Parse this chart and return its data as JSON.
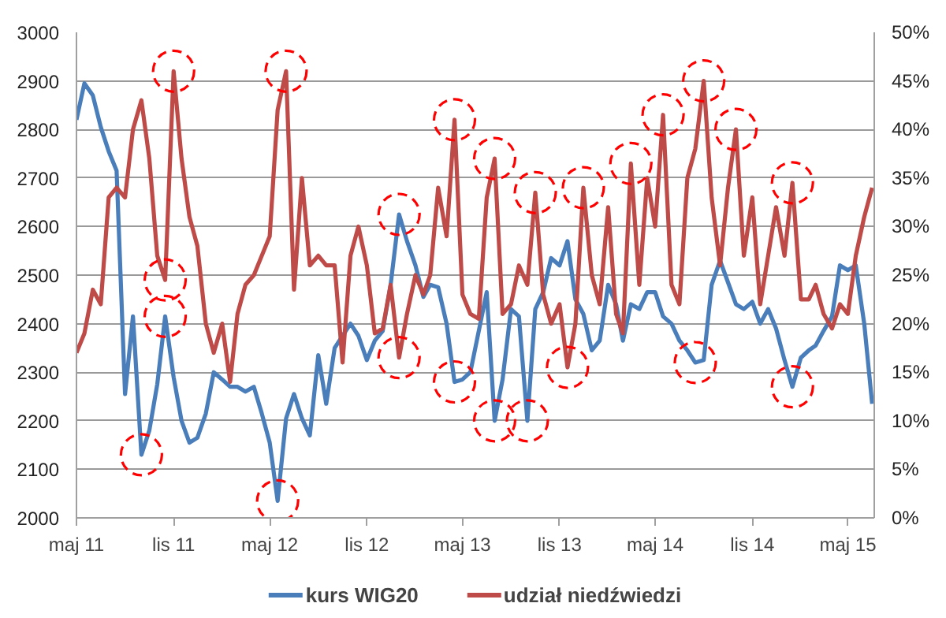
{
  "chart_data": {
    "type": "line",
    "x": [
      "2011-05-01",
      "2011-05-16",
      "2011-06-01",
      "2011-06-16",
      "2011-07-01",
      "2011-07-16",
      "2011-08-01",
      "2011-08-16",
      "2011-09-01",
      "2011-09-16",
      "2011-10-01",
      "2011-10-16",
      "2011-11-01",
      "2011-11-16",
      "2011-12-01",
      "2011-12-16",
      "2012-01-01",
      "2012-01-16",
      "2012-02-01",
      "2012-02-16",
      "2012-03-01",
      "2012-03-16",
      "2012-04-01",
      "2012-04-16",
      "2012-05-01",
      "2012-05-16",
      "2012-06-01",
      "2012-06-16",
      "2012-07-01",
      "2012-07-16",
      "2012-08-01",
      "2012-08-16",
      "2012-09-01",
      "2012-09-16",
      "2012-10-01",
      "2012-10-16",
      "2012-11-01",
      "2012-11-16",
      "2012-12-01",
      "2012-12-16",
      "2013-01-01",
      "2013-01-16",
      "2013-02-01",
      "2013-02-16",
      "2013-03-01",
      "2013-03-16",
      "2013-04-01",
      "2013-04-16",
      "2013-05-01",
      "2013-05-16",
      "2013-06-01",
      "2013-06-16",
      "2013-07-01",
      "2013-07-16",
      "2013-08-01",
      "2013-08-16",
      "2013-09-01",
      "2013-09-16",
      "2013-10-01",
      "2013-10-16",
      "2013-11-01",
      "2013-11-16",
      "2013-12-01",
      "2013-12-16",
      "2014-01-01",
      "2014-01-16",
      "2014-02-01",
      "2014-02-16",
      "2014-03-01",
      "2014-03-16",
      "2014-04-01",
      "2014-04-16",
      "2014-05-01",
      "2014-05-16",
      "2014-06-01",
      "2014-06-16",
      "2014-07-01",
      "2014-07-16",
      "2014-08-01",
      "2014-08-16",
      "2014-09-01",
      "2014-09-16",
      "2014-10-01",
      "2014-10-16",
      "2014-11-01",
      "2014-11-16",
      "2014-12-01",
      "2014-12-16",
      "2015-01-01",
      "2015-01-16",
      "2015-02-01",
      "2015-02-16",
      "2015-03-01",
      "2015-03-16",
      "2015-04-01",
      "2015-04-16",
      "2015-05-01",
      "2015-05-16",
      "2015-06-01",
      "2015-06-16"
    ],
    "series": [
      {
        "name": "kurs WIG20",
        "color": "#4a7ebb",
        "values": [
          2820,
          2895,
          2870,
          2805,
          2755,
          2715,
          2255,
          2415,
          2130,
          2180,
          2275,
          2415,
          2290,
          2200,
          2155,
          2165,
          2215,
          2300,
          2285,
          2270,
          2270,
          2260,
          2270,
          2215,
          2155,
          2035,
          2205,
          2255,
          2205,
          2170,
          2335,
          2235,
          2350,
          2375,
          2400,
          2375,
          2325,
          2365,
          2385,
          2480,
          2625,
          2570,
          2520,
          2455,
          2480,
          2475,
          2400,
          2280,
          2285,
          2300,
          2385,
          2465,
          2200,
          2285,
          2430,
          2415,
          2200,
          2430,
          2465,
          2535,
          2520,
          2570,
          2450,
          2420,
          2345,
          2365,
          2480,
          2440,
          2365,
          2440,
          2430,
          2465,
          2465,
          2415,
          2400,
          2365,
          2345,
          2320,
          2325,
          2480,
          2530,
          2485,
          2440,
          2430,
          2445,
          2400,
          2430,
          2390,
          2325,
          2270,
          2330,
          2345,
          2355,
          2385,
          2415,
          2520,
          2510,
          2520,
          2400,
          2235
        ]
      },
      {
        "name": "udział niedźwiedzi",
        "color": "#be4b48",
        "axis": "y2",
        "values": [
          17,
          19,
          23.5,
          22,
          33,
          34,
          33,
          40,
          43,
          37,
          27,
          24.5,
          46,
          37,
          31,
          28,
          20,
          17,
          20,
          14,
          21,
          24,
          25,
          27,
          29,
          42,
          46,
          23.5,
          35,
          26,
          27,
          26,
          26,
          16,
          27,
          30,
          26,
          19,
          19.5,
          24,
          16.5,
          21,
          25,
          23,
          25,
          34,
          29,
          41,
          23,
          21,
          20.5,
          33,
          37,
          21,
          22,
          26,
          24,
          33.5,
          23,
          20,
          22,
          15.5,
          20,
          34,
          25,
          22,
          32,
          21,
          19,
          36.5,
          24,
          35,
          30,
          41.5,
          24,
          22,
          35,
          38,
          45,
          33,
          26,
          34,
          40,
          27,
          33,
          22,
          27,
          32,
          27,
          34.5,
          22.5,
          22.5,
          24,
          21,
          19.5,
          22,
          21,
          27,
          31,
          34
        ]
      },
      {
        "type": "scatter",
        "color": "#ff0000",
        "marker": "circle",
        "line_style": "dashed",
        "x": [
          "2011-09-01",
          "2011-10-16",
          "2012-05-16",
          "2013-01-01",
          "2013-04-16",
          "2013-07-01",
          "2013-09-01",
          "2014-07-16",
          "2015-01-16"
        ],
        "values": [
          2130,
          2415,
          2035,
          2625,
          2280,
          2200,
          2200,
          2320,
          2270
        ]
      },
      {
        "type": "scatter",
        "color": "#ff0000",
        "marker": "circle",
        "line_style": "dashed",
        "axis": "y2",
        "x": [
          "2011-10-16",
          "2011-11-01",
          "2012-06-01",
          "2013-01-01",
          "2013-04-16",
          "2013-07-01",
          "2013-09-16",
          "2013-11-16",
          "2013-12-16",
          "2014-03-16",
          "2014-05-16",
          "2014-08-01",
          "2014-10-01",
          "2015-01-16"
        ],
        "values": [
          24.5,
          46,
          46,
          16.5,
          41,
          37,
          33.5,
          15.5,
          34,
          36.5,
          41.5,
          45,
          40,
          34.5
        ]
      }
    ],
    "xlim": [
      "2011-05-01",
      "2015-06-20"
    ],
    "xticks": [
      {
        "value": "2011-05-01",
        "label": "maj 11"
      },
      {
        "value": "2011-11-01",
        "label": "lis 11"
      },
      {
        "value": "2012-05-01",
        "label": "maj 12"
      },
      {
        "value": "2012-11-01",
        "label": "lis 12"
      },
      {
        "value": "2013-05-01",
        "label": "maj 13"
      },
      {
        "value": "2013-11-01",
        "label": "lis 13"
      },
      {
        "value": "2014-05-01",
        "label": "maj 14"
      },
      {
        "value": "2014-11-01",
        "label": "lis 14"
      },
      {
        "value": "2015-05-01",
        "label": "maj 15"
      }
    ],
    "ylim": [
      2000,
      3000
    ],
    "yticks": [
      2000,
      2100,
      2200,
      2300,
      2400,
      2500,
      2600,
      2700,
      2800,
      2900,
      3000
    ],
    "y2lim": [
      0,
      50
    ],
    "y2ticks": [
      {
        "value": 0,
        "label": "0%"
      },
      {
        "value": 5,
        "label": "5%"
      },
      {
        "value": 10,
        "label": "10%"
      },
      {
        "value": 15,
        "label": "15%"
      },
      {
        "value": 20,
        "label": "20%"
      },
      {
        "value": 25,
        "label": "25%"
      },
      {
        "value": 30,
        "label": "30%"
      },
      {
        "value": 35,
        "label": "35%"
      },
      {
        "value": 40,
        "label": "40%"
      },
      {
        "value": 45,
        "label": "45%"
      },
      {
        "value": 50,
        "label": "50%"
      }
    ],
    "grid": "y",
    "legend": "bottom",
    "marker": "none",
    "line_style": "solid"
  }
}
